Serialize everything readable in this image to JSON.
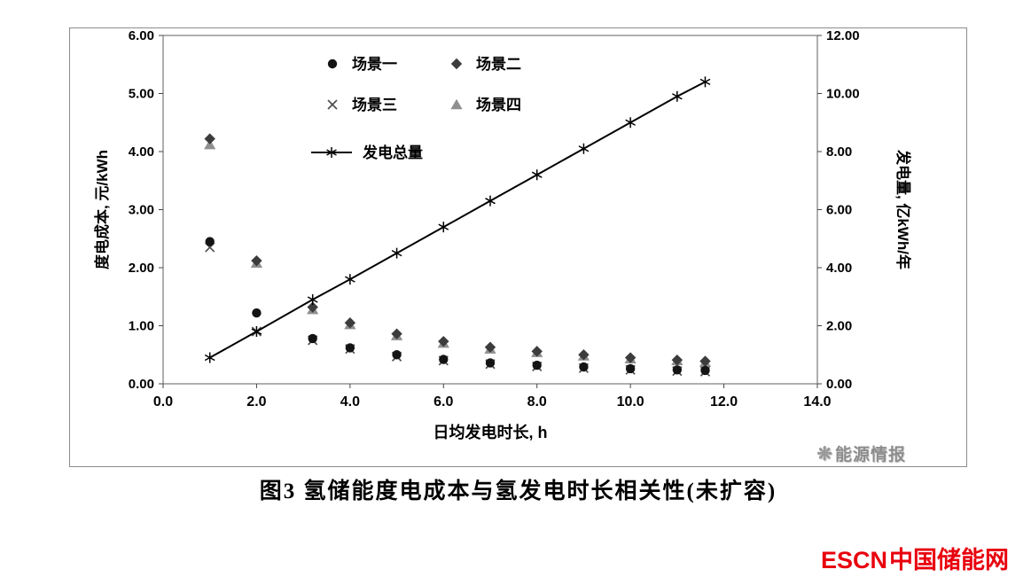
{
  "page": {
    "caption": "图3  氢储能度电成本与氢发电时长相关性(未扩容)",
    "watermark": {
      "icon": "❋",
      "text": "能源情报"
    },
    "brand": {
      "latin": "ESCN",
      "cn": "中国储能网",
      "color": "#e8000d"
    }
  },
  "chart_data": {
    "type": "scatter",
    "title": "",
    "xlabel": "日均发电时长, h",
    "ylabel_left": "度电成本, 元/kWh",
    "ylabel_right": "发电量, 亿kWh/年",
    "xlim": [
      0,
      14
    ],
    "ylim_left": [
      0,
      6
    ],
    "ylim_right": [
      0,
      12
    ],
    "grid": false,
    "legend_position": "top-center-inside",
    "x_ticks": [
      0,
      2,
      4,
      6,
      8,
      10,
      12,
      14
    ],
    "x_tick_labels": [
      "0.0",
      "2.0",
      "4.0",
      "6.0",
      "8.0",
      "10.0",
      "12.0",
      "14.0"
    ],
    "y_ticks_left": [
      0,
      1,
      2,
      3,
      4,
      5,
      6
    ],
    "y_tick_labels_left": [
      "0.00",
      "1.00",
      "2.00",
      "3.00",
      "4.00",
      "5.00",
      "6.00"
    ],
    "y_ticks_right": [
      0,
      2,
      4,
      6,
      8,
      10,
      12
    ],
    "y_tick_labels_right": [
      "0.00",
      "2.00",
      "4.00",
      "6.00",
      "8.00",
      "10.00",
      "12.00"
    ],
    "x": [
      1,
      2,
      3.2,
      4,
      5,
      6,
      7,
      8,
      9,
      10,
      11,
      11.6
    ],
    "series": [
      {
        "name": "场景一",
        "marker": "circle",
        "axis": "left",
        "line": false,
        "color": "#141414",
        "values": [
          2.45,
          1.22,
          0.78,
          0.62,
          0.5,
          0.42,
          0.36,
          0.32,
          0.29,
          0.26,
          0.24,
          0.23
        ]
      },
      {
        "name": "场景二",
        "marker": "diamond",
        "axis": "left",
        "line": false,
        "color": "#3c3c3c",
        "values": [
          4.22,
          2.12,
          1.32,
          1.05,
          0.86,
          0.73,
          0.63,
          0.56,
          0.5,
          0.45,
          0.41,
          0.39
        ]
      },
      {
        "name": "场景三",
        "marker": "x",
        "axis": "left",
        "line": false,
        "color": "#4d4d4d",
        "values": [
          2.35,
          0.9,
          0.75,
          0.6,
          0.47,
          0.4,
          0.34,
          0.3,
          0.27,
          0.24,
          0.22,
          0.21
        ]
      },
      {
        "name": "场景四",
        "marker": "triangle",
        "axis": "left",
        "line": false,
        "color": "#8f8f8f",
        "values": [
          4.12,
          2.08,
          1.28,
          1.02,
          0.83,
          0.7,
          0.6,
          0.54,
          0.48,
          0.43,
          0.4,
          0.37
        ]
      },
      {
        "name": "发电总量",
        "marker": "star",
        "axis": "right",
        "line": true,
        "color": "#000000",
        "values": [
          0.9,
          1.8,
          2.9,
          3.6,
          4.5,
          5.4,
          6.3,
          7.2,
          8.1,
          9.0,
          9.9,
          10.4
        ]
      }
    ]
  }
}
